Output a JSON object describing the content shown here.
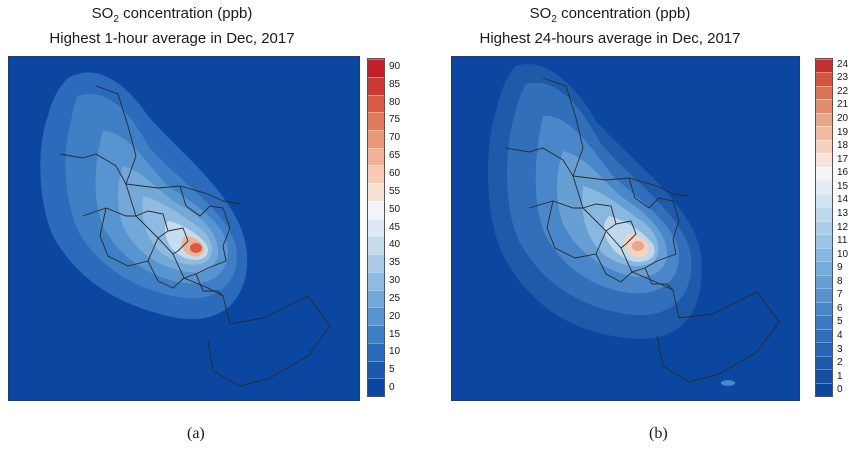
{
  "panels": {
    "a": {
      "title_line1_main": "SO",
      "title_line1_sub": "2",
      "title_line1_rest": " concentration (ppb)",
      "title_line2": "Highest 1-hour average in Dec, 2017",
      "caption": "(a)",
      "colorbar": {
        "ticks": [
          "0",
          "5",
          "10",
          "15",
          "20",
          "25",
          "30",
          "35",
          "40",
          "45",
          "50",
          "55",
          "60",
          "65",
          "70",
          "75",
          "80",
          "85",
          "90"
        ],
        "colors": [
          "#0b46a0",
          "#1a58ad",
          "#2c6bbb",
          "#3e7fc6",
          "#5894cf",
          "#73a8d8",
          "#8fbbe0",
          "#abcbe7",
          "#c5dbee",
          "#dde9f4",
          "#f2f4f6",
          "#f8e2d6",
          "#f5cbb6",
          "#f0b296",
          "#e99878",
          "#e07a5c",
          "#d65a45",
          "#cc3a33",
          "#c21f2a"
        ]
      }
    },
    "b": {
      "title_line1_main": "SO",
      "title_line1_sub": "2",
      "title_line1_rest": " concentration (ppb)",
      "title_line2": "Highest 24-hours average in Dec, 2017",
      "caption": "(b)",
      "colorbar": {
        "ticks": [
          "0",
          "1",
          "2",
          "3",
          "4",
          "5",
          "6",
          "7",
          "8",
          "9",
          "10",
          "11",
          "12",
          "13",
          "14",
          "15",
          "16",
          "17",
          "18",
          "19",
          "20",
          "21",
          "22",
          "23",
          "24"
        ],
        "colors": [
          "#0b46a0",
          "#14509f",
          "#1d5aa9",
          "#2764b3",
          "#326fbb",
          "#3d7ac3",
          "#4a86ca",
          "#5893d0",
          "#679fd5",
          "#77abda",
          "#88b7df",
          "#9ac3e4",
          "#acceea",
          "#bed9ee",
          "#d0e3f2",
          "#e2edf6",
          "#f3f4f6",
          "#f7e4da",
          "#f4d1c0",
          "#f0bca5",
          "#eaa68a",
          "#e38d70",
          "#d97257",
          "#cf5541",
          "#c2312e"
        ]
      }
    }
  }
}
